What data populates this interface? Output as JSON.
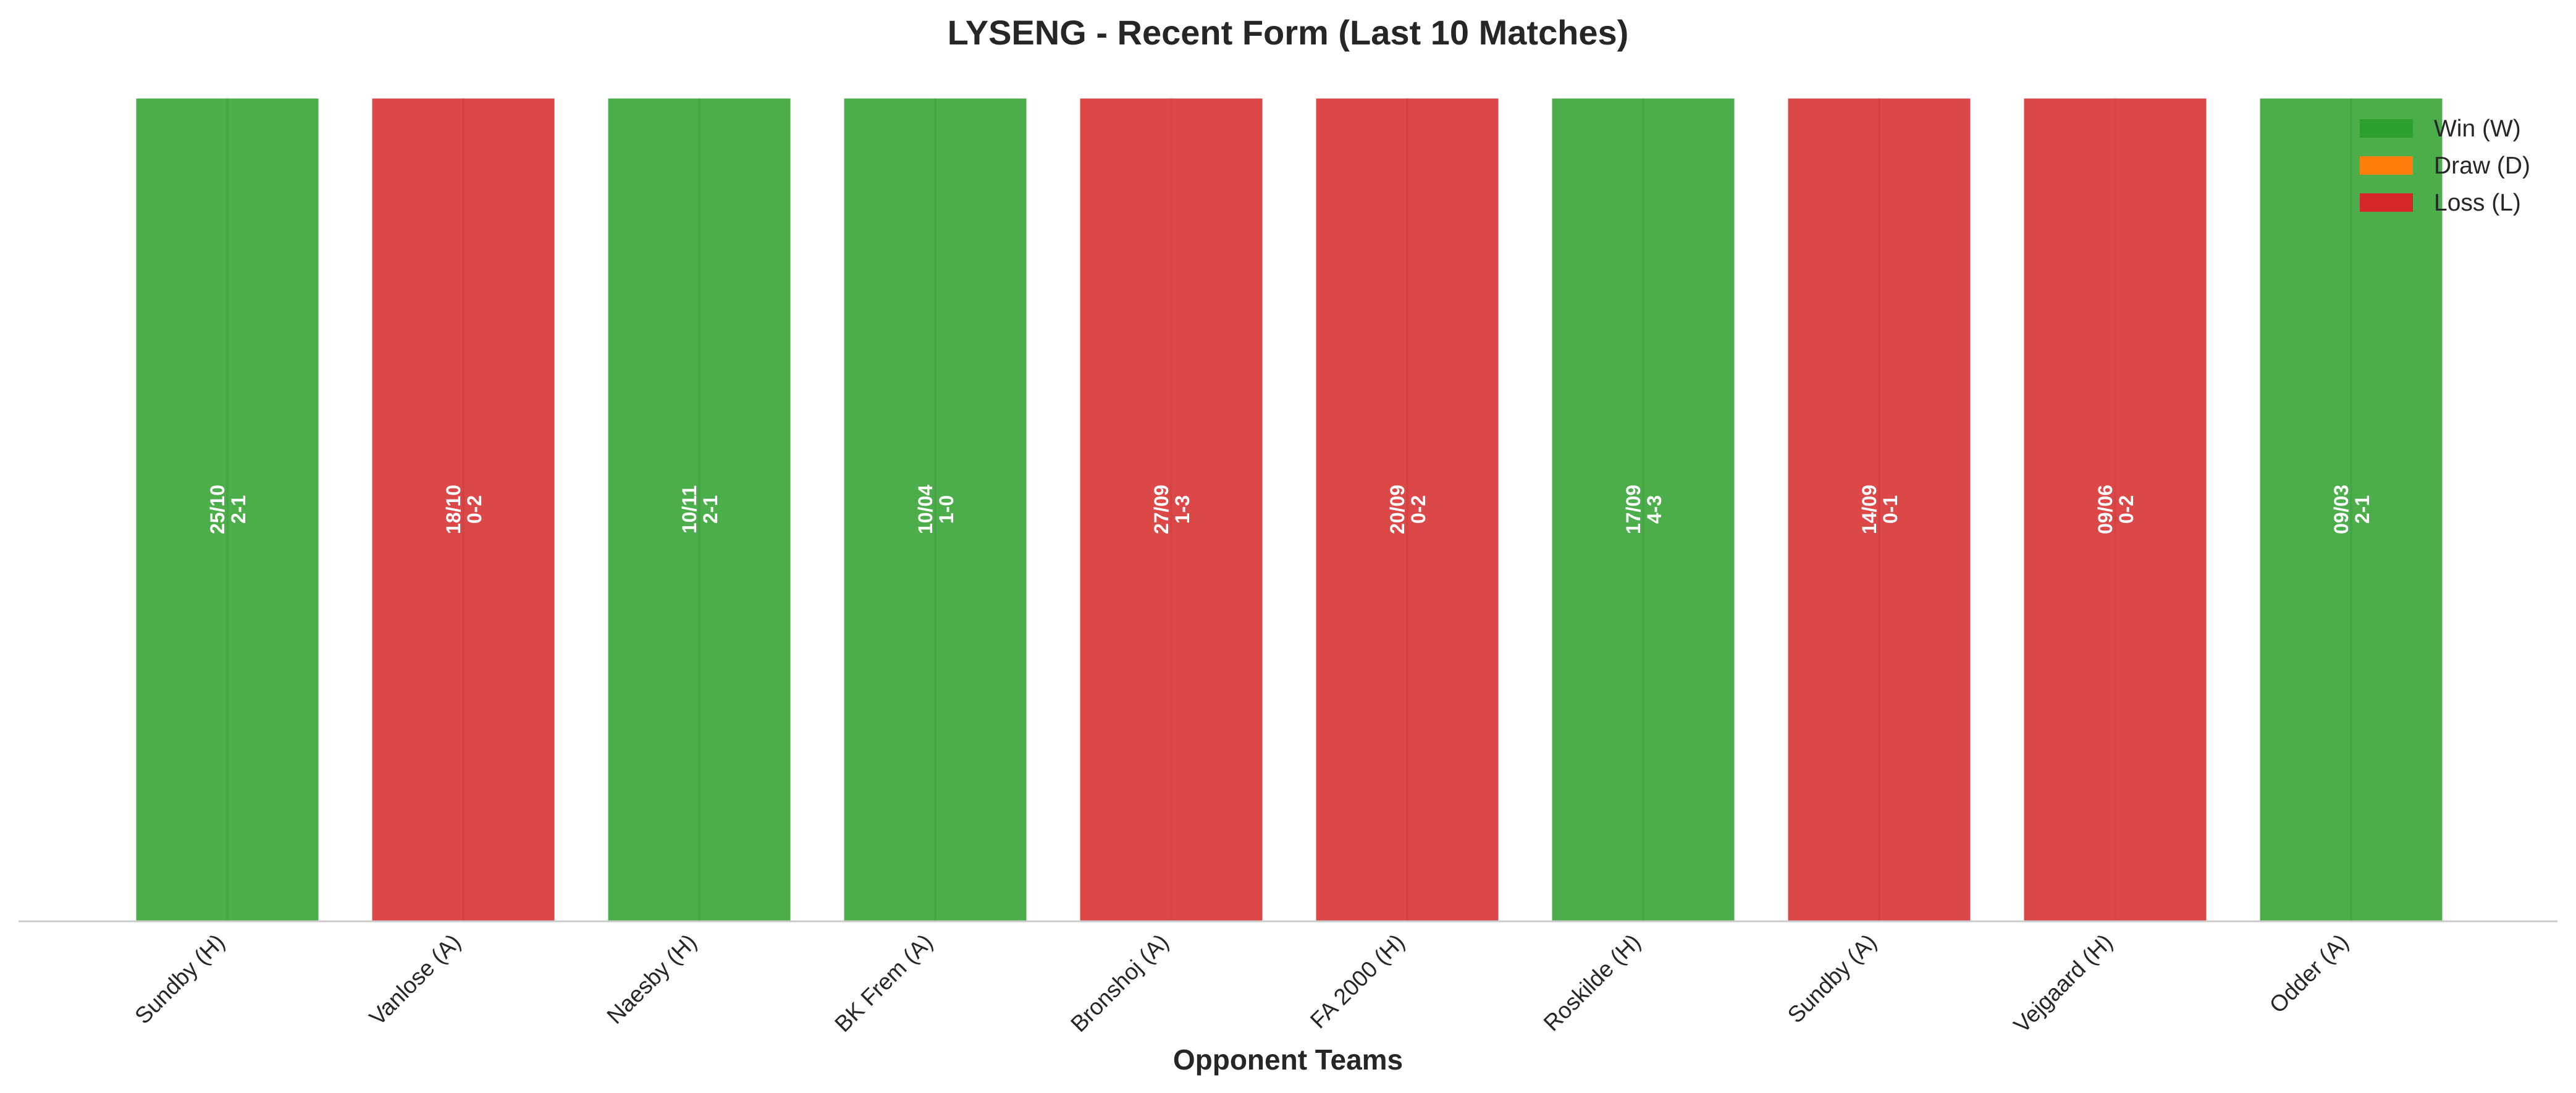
{
  "chart_data": {
    "type": "bar",
    "title": "LYSENG - Recent Form (Last 10 Matches)",
    "xlabel": "Opponent Teams",
    "ylabel": "",
    "ylim": [
      0,
      1
    ],
    "categories": [
      "Sundby (H)",
      "Vanlose (A)",
      "Naesby (H)",
      "BK Frem (A)",
      "Bronshoj (A)",
      "FA 2000 (H)",
      "Roskilde (H)",
      "Sundby (A)",
      "Vejgaard (H)",
      "Odder (A)"
    ],
    "values": [
      1,
      1,
      1,
      1,
      1,
      1,
      1,
      1,
      1,
      1
    ],
    "results": [
      "W",
      "L",
      "W",
      "W",
      "L",
      "L",
      "W",
      "L",
      "L",
      "W"
    ],
    "dates": [
      "25/10",
      "18/10",
      "10/11",
      "10/04",
      "27/09",
      "20/09",
      "17/09",
      "14/09",
      "09/06",
      "09/03"
    ],
    "scores": [
      "2-1",
      "0-2",
      "2-1",
      "1-0",
      "1-3",
      "0-2",
      "4-3",
      "0-1",
      "0-2",
      "2-1"
    ],
    "legend": [
      {
        "key": "W",
        "label": "Win (W)",
        "color": "#2ca02c"
      },
      {
        "key": "D",
        "label": "Draw (D)",
        "color": "#ff7f0e"
      },
      {
        "key": "L",
        "label": "Loss (L)",
        "color": "#d62728"
      }
    ],
    "legend_position": "top-right",
    "grid": false
  }
}
